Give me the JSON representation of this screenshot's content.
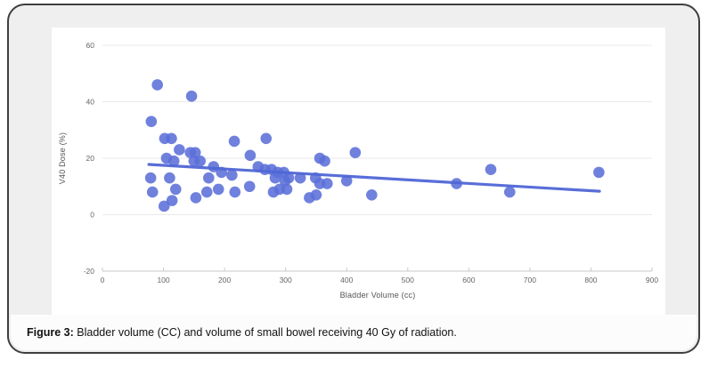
{
  "figure": {
    "caption_label": "Figure 3:",
    "caption_text": " Bladder volume (CC) and volume of small bowel receiving 40 Gy of radiation."
  },
  "colors": {
    "card_background": "#efefef",
    "card_border": "#3f3f3f",
    "panel_background": "#ffffff",
    "gridline": "#e8e8e8",
    "axis_line": "#c9c9c9",
    "tick_text": "#666666",
    "point_fill": "#5b6fd8",
    "trend_stroke": "#4f66d6"
  },
  "chart_data": {
    "type": "scatter",
    "title": "",
    "xlabel": "Bladder Volume (cc)",
    "ylabel": "V40 Dose (%)",
    "xlim": [
      0,
      900
    ],
    "ylim": [
      -20,
      60
    ],
    "x_ticks": [
      0,
      100,
      200,
      300,
      400,
      500,
      600,
      700,
      800,
      900
    ],
    "y_ticks": [
      60,
      40,
      20,
      0,
      -20
    ],
    "grid": "horizontal",
    "legend": "none",
    "points": [
      [
        90,
        46
      ],
      [
        146,
        42
      ],
      [
        80,
        33
      ],
      [
        102,
        27
      ],
      [
        113,
        27
      ],
      [
        216,
        26
      ],
      [
        268,
        27
      ],
      [
        126,
        23
      ],
      [
        144,
        22
      ],
      [
        152,
        22
      ],
      [
        414,
        22
      ],
      [
        242,
        21
      ],
      [
        105,
        20
      ],
      [
        117,
        19
      ],
      [
        150,
        19
      ],
      [
        160,
        19
      ],
      [
        356,
        20
      ],
      [
        364,
        19
      ],
      [
        182,
        17
      ],
      [
        255,
        17
      ],
      [
        266,
        16
      ],
      [
        277,
        16
      ],
      [
        287,
        15
      ],
      [
        297,
        15
      ],
      [
        79,
        13
      ],
      [
        110,
        13
      ],
      [
        174,
        13
      ],
      [
        212,
        14
      ],
      [
        195,
        15
      ],
      [
        283,
        13
      ],
      [
        305,
        13
      ],
      [
        324,
        13
      ],
      [
        349,
        13
      ],
      [
        299,
        12
      ],
      [
        356,
        11
      ],
      [
        368,
        11
      ],
      [
        400,
        12
      ],
      [
        82,
        8
      ],
      [
        120,
        9
      ],
      [
        153,
        6
      ],
      [
        171,
        8
      ],
      [
        190,
        9
      ],
      [
        217,
        8
      ],
      [
        241,
        10
      ],
      [
        280,
        8
      ],
      [
        290,
        9
      ],
      [
        302,
        9
      ],
      [
        350,
        7
      ],
      [
        441,
        7
      ],
      [
        339,
        6
      ],
      [
        114,
        5
      ],
      [
        101,
        3
      ],
      [
        580,
        11
      ],
      [
        636,
        16
      ],
      [
        667,
        8
      ],
      [
        813,
        15
      ]
    ],
    "trendline": {
      "x1": 76,
      "y1": 17.8,
      "x2": 814,
      "y2": 8.3
    }
  }
}
